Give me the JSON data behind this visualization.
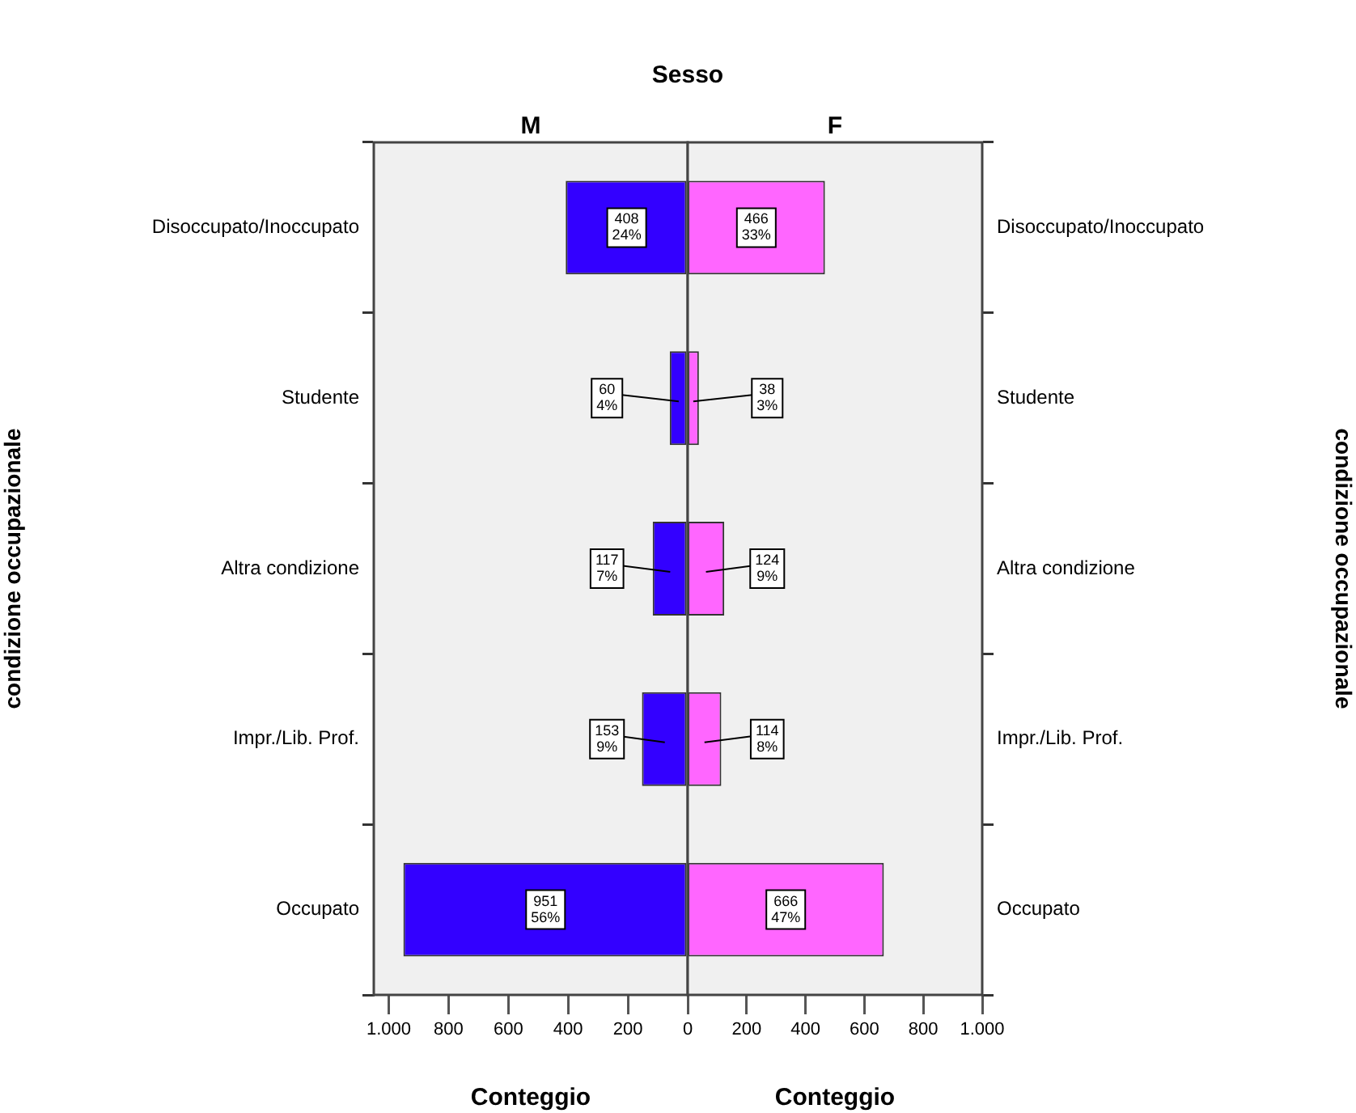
{
  "chart_data": [
    {
      "type": "bar",
      "orientation": "horizontal",
      "title": "M",
      "annotations": [
        "Sesso"
      ],
      "xlabel": "Conteggio",
      "ylabel": "condizione occupazionale",
      "categories": [
        "Disoccupato/Inoccupato",
        "Studente",
        "Altra condizione",
        "Impr./Lib. Prof.",
        "Occupato"
      ],
      "values": [
        408,
        60,
        117,
        153,
        951
      ],
      "color": "#3300ff",
      "value_labels": [
        "408 24%",
        "60 4%",
        "117 7%",
        "153 9%",
        "951 56%"
      ],
      "xlim": [
        1050,
        0
      ],
      "xticks": [
        {
          "value": 1000,
          "label": "1.000"
        },
        800,
        600,
        400,
        200,
        0
      ],
      "grid": false
    },
    {
      "type": "bar",
      "orientation": "horizontal",
      "title": "F",
      "xlabel": "Conteggio",
      "ylabel": "condizione occupazionale",
      "categories": [
        "Disoccupato/Inoccupato",
        "Studente",
        "Altra condizione",
        "Impr./Lib. Prof.",
        "Occupato"
      ],
      "values": [
        466,
        38,
        124,
        114,
        666
      ],
      "color": "#ff66ff",
      "value_labels": [
        "466 33%",
        "38 3%",
        "124 9%",
        "114 8%",
        "666 47%"
      ],
      "xlim": [
        0,
        1000
      ],
      "xticks": [
        200,
        400,
        600,
        800,
        {
          "value": 1000,
          "label": "1.000"
        }
      ],
      "grid": false
    }
  ]
}
